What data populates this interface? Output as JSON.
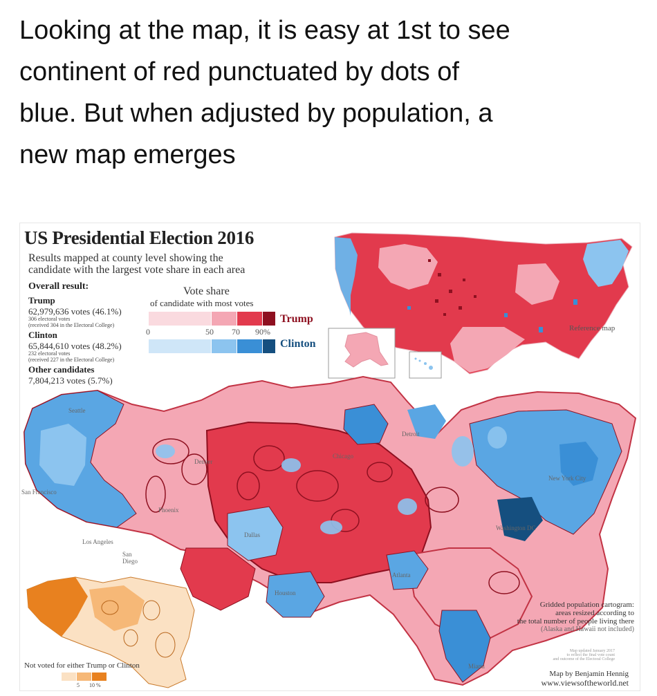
{
  "caption": {
    "lines": [
      "Looking at the map, it is easy at 1st to see",
      "continent of red punctuated by dots of",
      "blue. But when adjusted by population, a",
      "new map emerges"
    ]
  },
  "infographic": {
    "title": "US Presidential Election 2016",
    "subtitle_1": "Results mapped at county level showing the",
    "subtitle_2": "candidate with the largest vote share in each area",
    "overall_label": "Overall result:",
    "trump": {
      "name": "Trump",
      "votes": "62,979,636 votes (46.1%)",
      "ev_1": "306 electoral votes",
      "ev_2": "(received 304 in the Electoral College)"
    },
    "clinton": {
      "name": "Clinton",
      "votes": "65,844,610 votes (48.2%)",
      "ev_1": "232 electoral votes",
      "ev_2": "(received 227 in the Electoral College)"
    },
    "other": {
      "name": "Other candidates",
      "votes": "7,804,213 votes (5.7%)"
    },
    "vote_share": {
      "title": "Vote share",
      "subtitle": "of candidate with most votes",
      "ticks": [
        "0",
        "50",
        "70",
        "90%"
      ],
      "trump_label": "Trump",
      "clinton_label": "Clinton",
      "trump_colors": [
        "#fadadf",
        "#f4a7b4",
        "#e23a4d",
        "#8e1020"
      ],
      "clinton_colors": [
        "#cfe6f8",
        "#8cc4ef",
        "#3a8fd6",
        "#154f7f"
      ]
    },
    "reference_label": "Reference map",
    "city_labels": {
      "seattle": "Seattle",
      "san_francisco": "San Francisco",
      "denver": "Denver",
      "phoenix": "Phoenix",
      "los_angeles": "Los Angeles",
      "san_diego": "San Diego",
      "dallas": "Dallas",
      "houston": "Houston",
      "chicago": "Chicago",
      "detroit": "Detroit",
      "atlanta": "Atlanta",
      "miami": "Miami",
      "new_york": "New York City",
      "washington": "Washington DC"
    },
    "cartogram_note": {
      "line_1": "Gridded population cartogram:",
      "line_2": "areas resized according to",
      "line_3": "the total number of people living there",
      "line_4": "(Alaska and Hawaii not included)"
    },
    "small_note": {
      "line_1": "Map updated January 2017",
      "line_2": "to reflect the final vote count",
      "line_3": "and outcome of the Electoral College"
    },
    "not_voted": {
      "label": "Not voted for either Trump or Clinton",
      "ticks": [
        "5",
        "10 %"
      ],
      "colors": [
        "#fbe1c3",
        "#f6b877",
        "#e8811f"
      ]
    },
    "credit": {
      "line_1": "Map by Benjamin Hennig",
      "line_2": "www.viewsoftheworld.net"
    },
    "colors": {
      "red": "#e23a4d",
      "pink": "#f4a7b4",
      "blue": "#3a8fd6",
      "light_blue": "#8cc4ef",
      "dark_blue": "#154f7f",
      "orange": "#e8811f"
    }
  }
}
